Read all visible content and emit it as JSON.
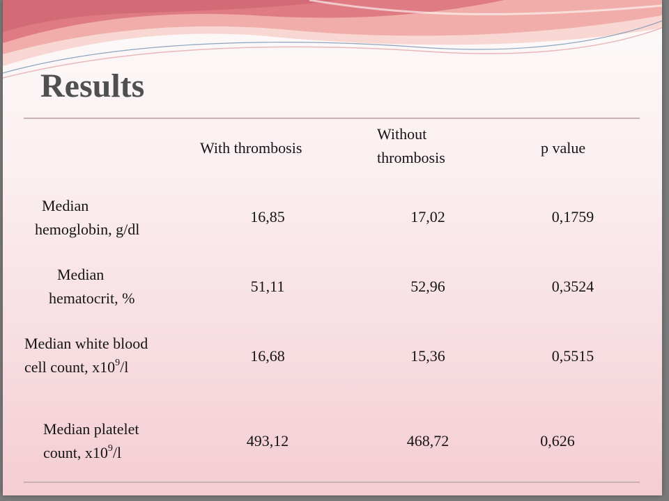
{
  "slide": {
    "title": "Results",
    "table": {
      "headers": {
        "col1": "With thrombosis",
        "col2_line1": "Without",
        "col2_line2": "thrombosis",
        "col3": "p value"
      },
      "rows": [
        {
          "label_line1": "Median",
          "label_line2": "hemoglobin, g/dl",
          "with": "16,85",
          "without": "17,02",
          "p": "0,1759"
        },
        {
          "label_line1": "Median",
          "label_line2": "hematocrit, %",
          "with": "51,11",
          "without": "52,96",
          "p": "0,3524"
        },
        {
          "label_line1": "Median white blood",
          "label_line2a": "cell count, x10",
          "label_sup": "9",
          "label_line2b": "/l",
          "with": "16,68",
          "without": "15,36",
          "p": "0,5515"
        },
        {
          "label_line1": "Median platelet",
          "label_line2a": "count, x10",
          "label_sup": "9",
          "label_line2b": "/l",
          "with": "493,12",
          "without": "468,72",
          "p": "0,626"
        }
      ]
    }
  },
  "colors": {
    "title": "#4f4f4f",
    "rule": "#c9b0b4",
    "swoosh_primary": "#e8868c",
    "swoosh_secondary": "#f2a7a0"
  }
}
